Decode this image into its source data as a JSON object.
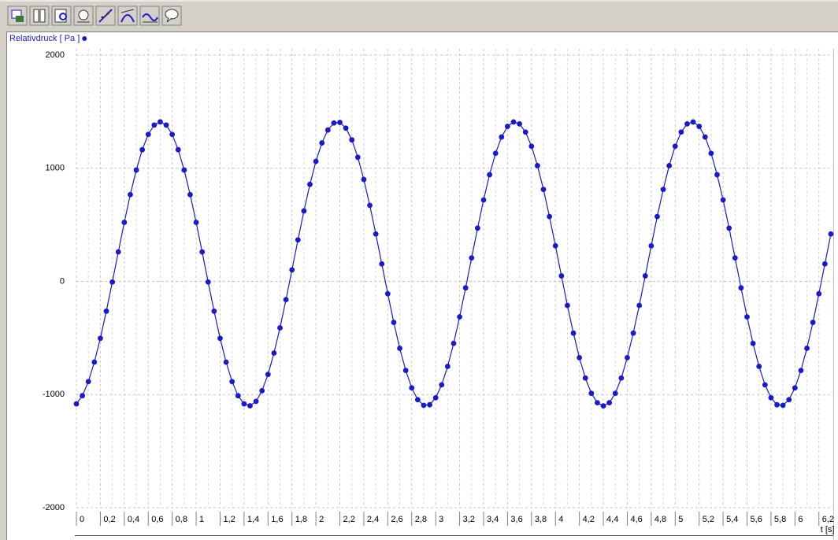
{
  "chart_data": {
    "type": "line",
    "y_axis_label": "Relativdruck [ Pa ]",
    "x_axis_label": "t [s]",
    "x": [
      0,
      0.05,
      0.1,
      0.15,
      0.2,
      0.25,
      0.3,
      0.35,
      0.4,
      0.45,
      0.5,
      0.55,
      0.6,
      0.65,
      0.7,
      0.75,
      0.8,
      0.85,
      0.9,
      0.95,
      1,
      1.05,
      1.1,
      1.15,
      1.2,
      1.25,
      1.3,
      1.35,
      1.4,
      1.45,
      1.5,
      1.55,
      1.6,
      1.65,
      1.7,
      1.75,
      1.8,
      1.85,
      1.9,
      1.95,
      2,
      2.05,
      2.1,
      2.15,
      2.2,
      2.25,
      2.3,
      2.35,
      2.4,
      2.45,
      2.5,
      2.55,
      2.6,
      2.65,
      2.7,
      2.75,
      2.8,
      2.85,
      2.9,
      2.95,
      3,
      3.05,
      3.1,
      3.15,
      3.2,
      3.25,
      3.3,
      3.35,
      3.4,
      3.45,
      3.5,
      3.55,
      3.6,
      3.65,
      3.7,
      3.75,
      3.8,
      3.85,
      3.9,
      3.95,
      4,
      4.05,
      4.1,
      4.15,
      4.2,
      4.25,
      4.3,
      4.35,
      4.4,
      4.45,
      4.5,
      4.55,
      4.6,
      4.65,
      4.7,
      4.75,
      4.8,
      4.85,
      4.9,
      4.95,
      5,
      5.05,
      5.1,
      5.15,
      5.2,
      5.25,
      5.3,
      5.35,
      5.4,
      5.45,
      5.5,
      5.55,
      5.6,
      5.65,
      5.7,
      5.75,
      5.8,
      5.85,
      5.9,
      5.95,
      6,
      6.05,
      6.1,
      6.15,
      6.2,
      6.25,
      6.3
    ],
    "series": [
      {
        "name": "Relativdruck [ Pa ]",
        "color": "#1a1ac8",
        "values": [
          -1082,
          -1010,
          -885,
          -713,
          -503,
          -263,
          -5,
          261,
          522,
          767,
          984,
          1164,
          1299,
          1382,
          1410,
          1382,
          1299,
          1164,
          984,
          767,
          522,
          261,
          -5,
          -263,
          -503,
          -713,
          -885,
          -1010,
          -1082,
          -1099,
          -1060,
          -966,
          -822,
          -633,
          -410,
          -161,
          102,
          367,
          623,
          858,
          1061,
          1224,
          1338,
          1400,
          1405,
          1355,
          1251,
          1097,
          901,
          672,
          419,
          155,
          -109,
          -362,
          -591,
          -787,
          -941,
          -1045,
          -1095,
          -1090,
          -1028,
          -914,
          -751,
          -548,
          -313,
          -57,
          208,
          471,
          720,
          943,
          1132,
          1276,
          1370,
          1409,
          1392,
          1320,
          1195,
          1023,
          813,
          573,
          315,
          49,
          -212,
          -457,
          -674,
          -854,
          -989,
          -1072,
          -1100,
          -1072,
          -989,
          -854,
          -674,
          -457,
          -212,
          49,
          315,
          573,
          813,
          1023,
          1195,
          1320,
          1392,
          1409,
          1370,
          1276,
          1132,
          943,
          720,
          471,
          208,
          -57,
          -313,
          -548,
          -751,
          -914,
          -1028,
          -1090,
          -1095,
          -1045,
          -941,
          -787,
          -591,
          -362,
          -109,
          155,
          419
        ]
      }
    ],
    "xlim": [
      0,
      6.32
    ],
    "ylim": [
      -2000,
      2000
    ],
    "xticks": [
      0,
      {
        "value": 0.2,
        "label": "0,2"
      },
      {
        "value": 0.4,
        "label": "0,4"
      },
      {
        "value": 0.6,
        "label": "0,6"
      },
      {
        "value": 0.8,
        "label": "0,8"
      },
      1,
      {
        "value": 1.2,
        "label": "1,2"
      },
      {
        "value": 1.4,
        "label": "1,4"
      },
      {
        "value": 1.6,
        "label": "1,6"
      },
      {
        "value": 1.8,
        "label": "1,8"
      },
      2,
      {
        "value": 2.2,
        "label": "2,2"
      },
      {
        "value": 2.4,
        "label": "2,4"
      },
      {
        "value": 2.6,
        "label": "2,6"
      },
      {
        "value": 2.8,
        "label": "2,8"
      },
      3,
      {
        "value": 3.2,
        "label": "3,2"
      },
      {
        "value": 3.4,
        "label": "3,4"
      },
      {
        "value": 3.6,
        "label": "3,6"
      },
      {
        "value": 3.8,
        "label": "3,8"
      },
      4,
      {
        "value": 4.2,
        "label": "4,2"
      },
      {
        "value": 4.4,
        "label": "4,4"
      },
      {
        "value": 4.6,
        "label": "4,6"
      },
      {
        "value": 4.8,
        "label": "4,8"
      },
      5,
      {
        "value": 5.2,
        "label": "5,2"
      },
      {
        "value": 5.4,
        "label": "5,4"
      },
      {
        "value": 5.6,
        "label": "5,6"
      },
      {
        "value": 5.8,
        "label": "5,8"
      },
      6,
      {
        "value": 6.2,
        "label": "6,2"
      }
    ],
    "yticks": [
      2000,
      1000,
      0,
      -1000,
      -2000
    ],
    "grid": true
  }
}
